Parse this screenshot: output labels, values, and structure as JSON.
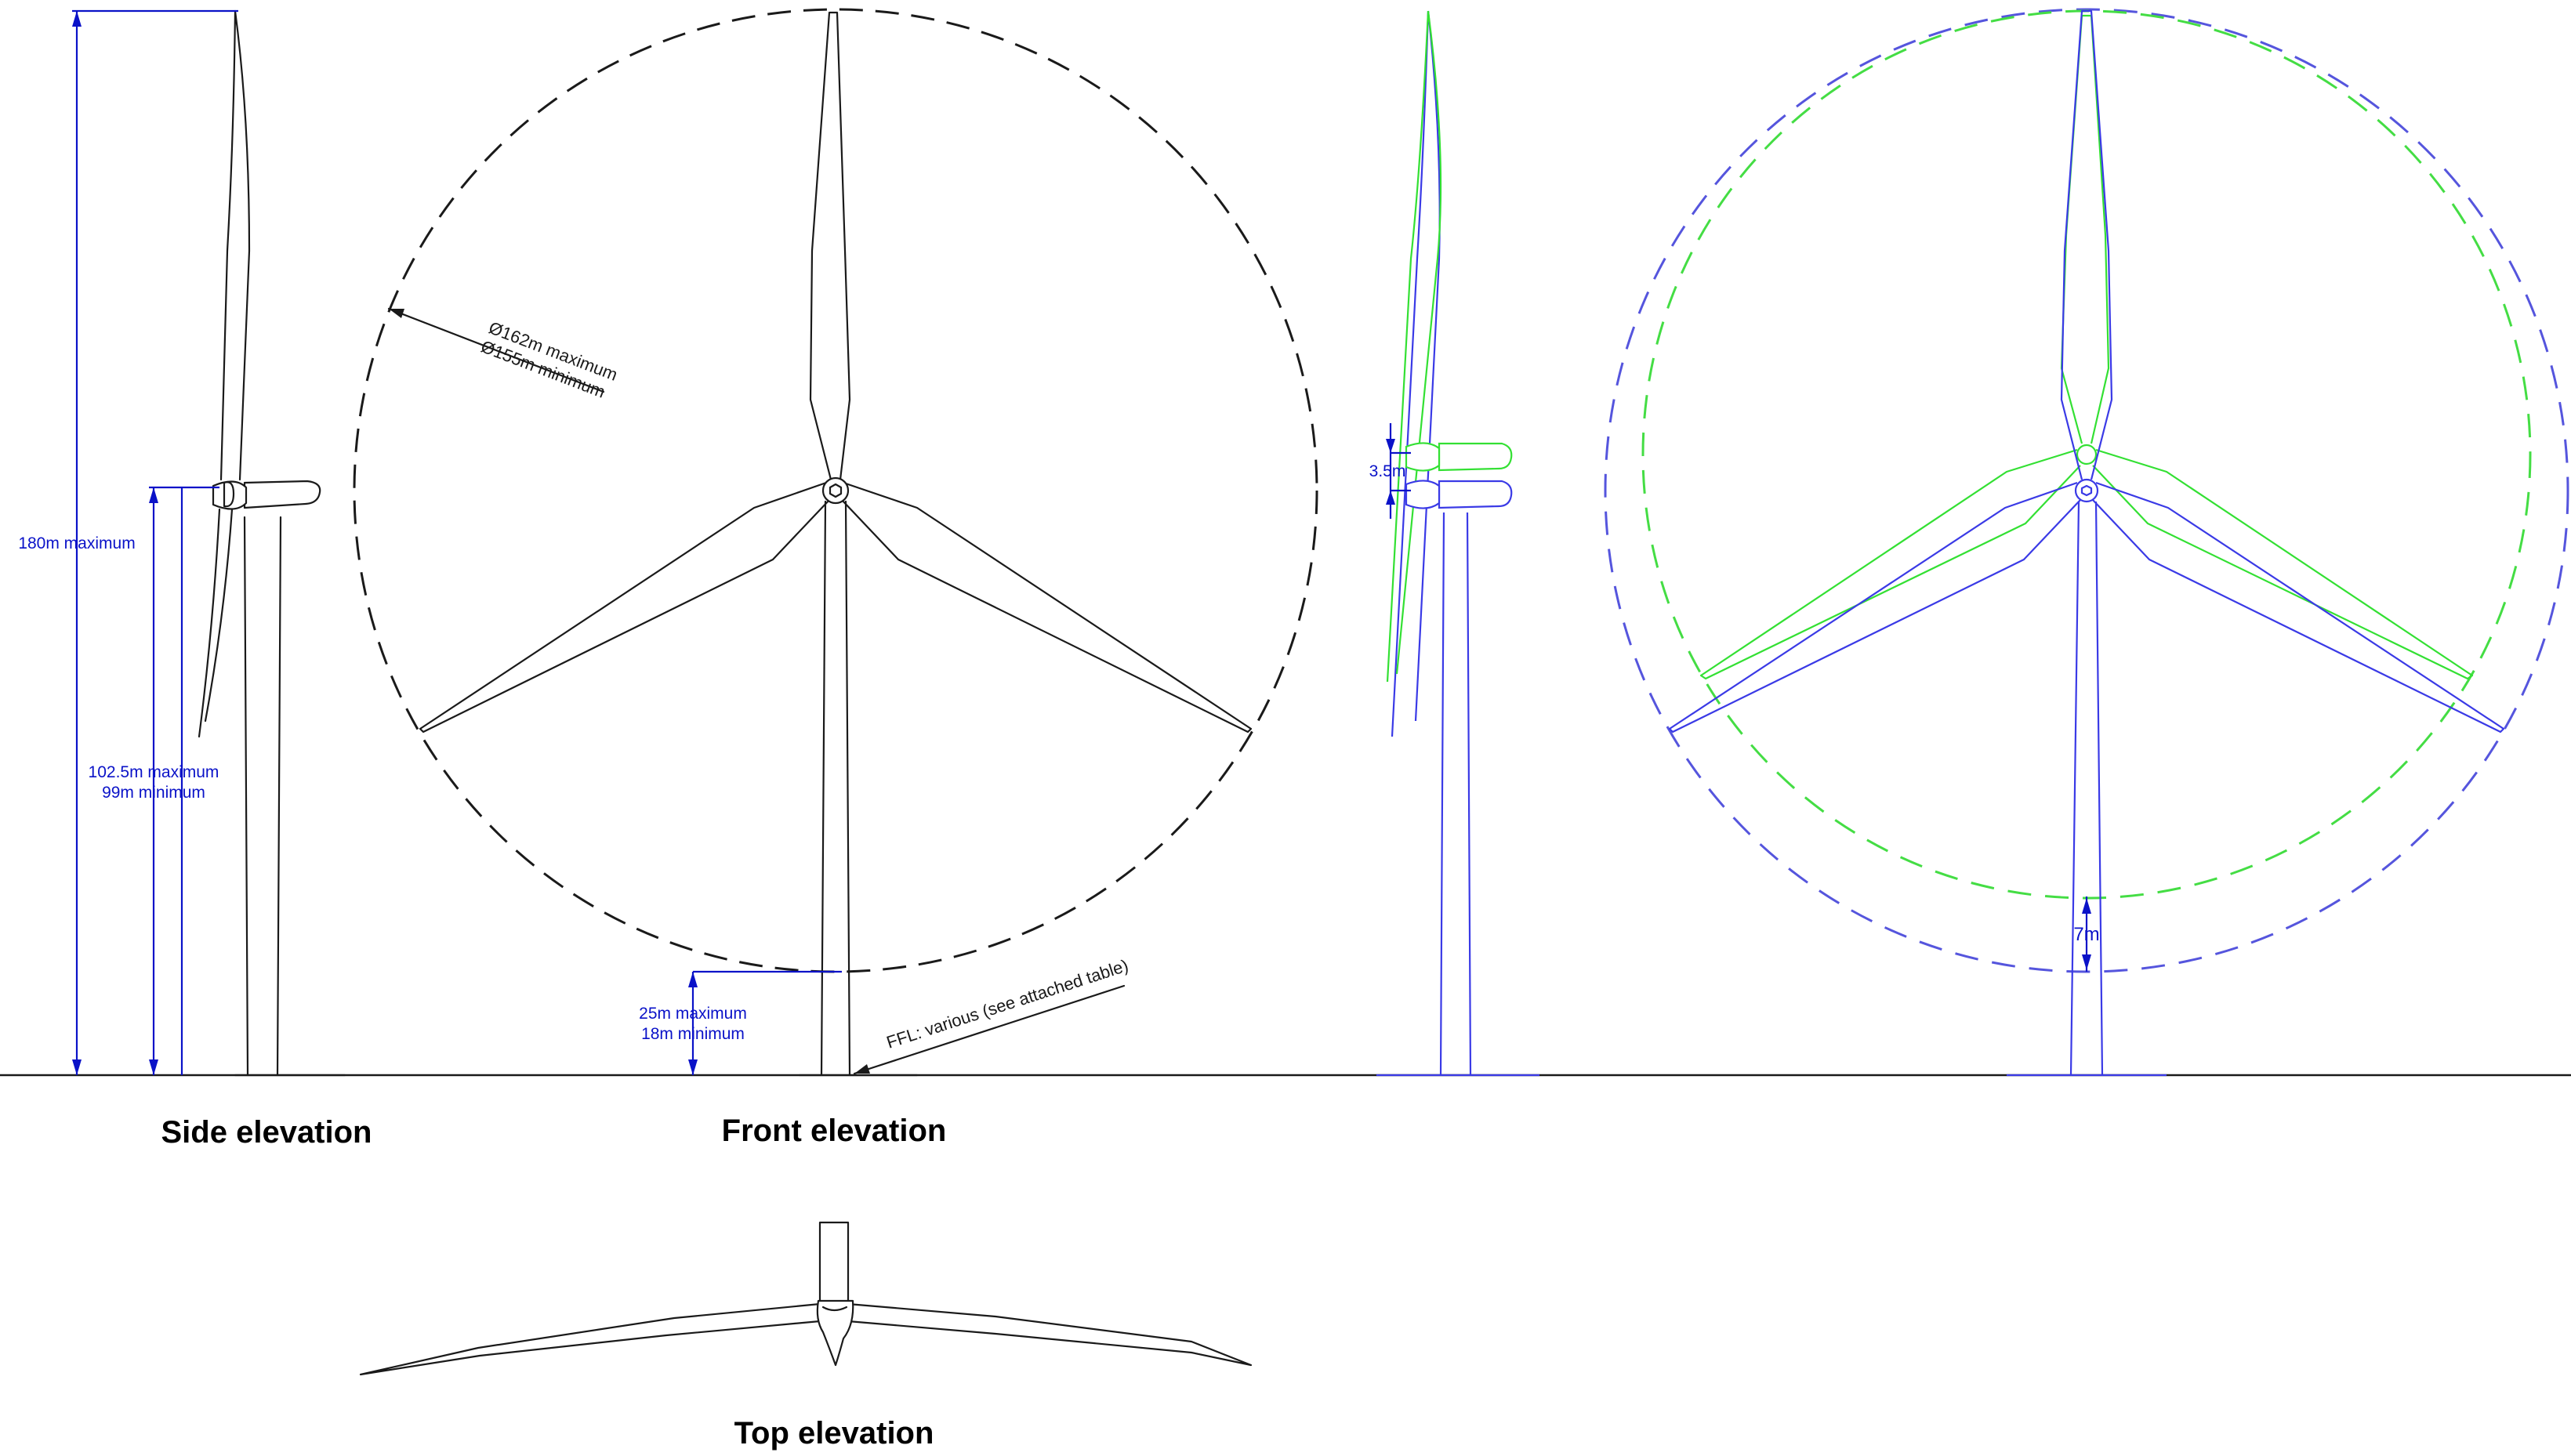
{
  "labels": {
    "side_elevation": "Side elevation",
    "front_elevation": "Front elevation",
    "top_elevation": "Top elevation"
  },
  "dimensions": {
    "tip_height": "180m maximum",
    "hub_height_max": "102.5m maximum",
    "hub_height_min": "99m minimum",
    "rotor_diameter_max": "Ø162m maximum",
    "rotor_diameter_min": "Ø155m minimum",
    "ground_clearance_max": "25m maximum",
    "ground_clearance_min": "18m minimum",
    "hub_offset": "3.5m",
    "tip_clearance_offset": "7m"
  },
  "notes": {
    "ffl": "FFL: various (see attached table)"
  },
  "colors": {
    "line": "#1a1a1a",
    "dimension": "#0a12c8",
    "maximum_layout": "#3a3ae6",
    "minimum_layout": "#33e033"
  }
}
